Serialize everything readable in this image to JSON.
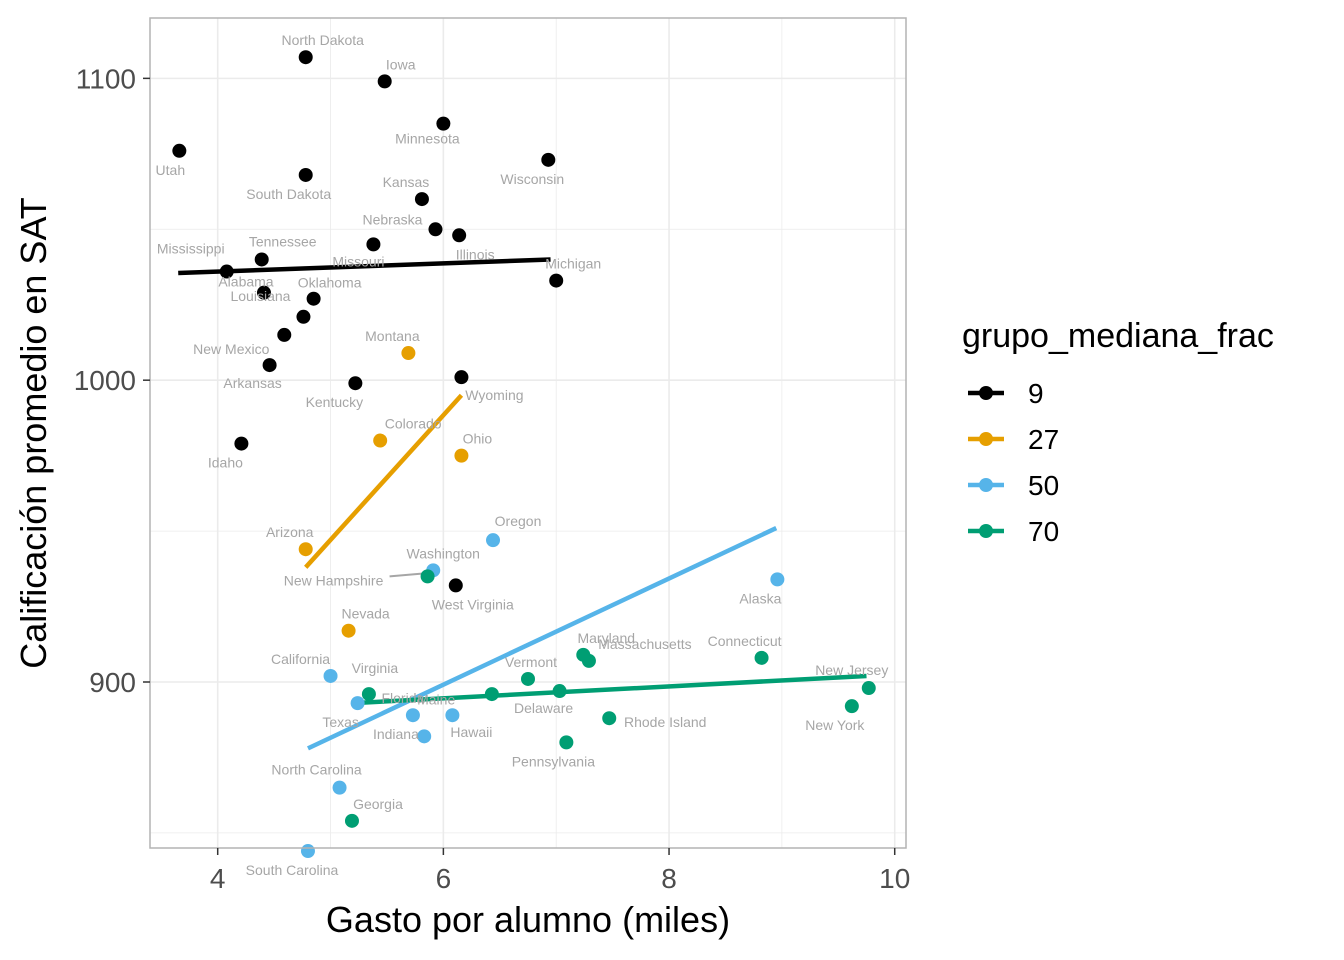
{
  "chart_data": {
    "type": "scatter",
    "xlabel": "Gasto por alumno (miles)",
    "ylabel": "Calificación promedio en SAT",
    "xlim": [
      3.4,
      10.1
    ],
    "ylim": [
      845,
      1120
    ],
    "x_ticks": [
      4,
      6,
      8,
      10
    ],
    "y_ticks": [
      900,
      1000,
      1100
    ],
    "grid": true,
    "legend": {
      "title": "grupo_mediana_frac",
      "placement": "right"
    },
    "series": [
      {
        "name": "9",
        "color": "#000000",
        "trend": [
          [
            3.65,
            1035.5
          ],
          [
            6.95,
            1040
          ]
        ],
        "points": [
          {
            "label": "North Dakota",
            "x": 4.78,
            "y": 1107
          },
          {
            "label": "Iowa",
            "x": 5.48,
            "y": 1099
          },
          {
            "label": "Minnesota",
            "x": 6.0,
            "y": 1085
          },
          {
            "label": "Utah",
            "x": 3.66,
            "y": 1076
          },
          {
            "label": "Wisconsin",
            "x": 6.93,
            "y": 1073
          },
          {
            "label": "South Dakota",
            "x": 4.78,
            "y": 1068
          },
          {
            "label": "Kansas",
            "x": 5.81,
            "y": 1060
          },
          {
            "label": "Nebraska",
            "x": 5.93,
            "y": 1050
          },
          {
            "label": "Illinois",
            "x": 6.14,
            "y": 1048
          },
          {
            "label": "Missouri",
            "x": 5.38,
            "y": 1045
          },
          {
            "label": "Tennessee",
            "x": 4.39,
            "y": 1040
          },
          {
            "label": "Mississippi",
            "x": 4.08,
            "y": 1036
          },
          {
            "label": "Michigan",
            "x": 7.0,
            "y": 1033
          },
          {
            "label": "Alabama",
            "x": 4.41,
            "y": 1029
          },
          {
            "label": "Oklahoma",
            "x": 4.85,
            "y": 1027
          },
          {
            "label": "Louisiana",
            "x": 4.76,
            "y": 1021
          },
          {
            "label": "New Mexico",
            "x": 4.59,
            "y": 1015
          },
          {
            "label": "Arkansas",
            "x": 4.46,
            "y": 1005
          },
          {
            "label": "Wyoming",
            "x": 6.16,
            "y": 1001
          },
          {
            "label": "Kentucky",
            "x": 5.22,
            "y": 999
          },
          {
            "label": "Idaho",
            "x": 4.21,
            "y": 979
          },
          {
            "label": "West Virginia",
            "x": 6.11,
            "y": 932
          }
        ]
      },
      {
        "name": "27",
        "color": "#E69F00",
        "trend": [
          [
            4.78,
            938
          ],
          [
            6.16,
            995
          ]
        ],
        "points": [
          {
            "label": "Montana",
            "x": 5.69,
            "y": 1009
          },
          {
            "label": "Colorado",
            "x": 5.44,
            "y": 980
          },
          {
            "label": "Ohio",
            "x": 6.16,
            "y": 975
          },
          {
            "label": "Arizona",
            "x": 4.78,
            "y": 944
          },
          {
            "label": "Nevada",
            "x": 5.16,
            "y": 917
          }
        ]
      },
      {
        "name": "50",
        "color": "#56B4E9",
        "trend": [
          [
            4.8,
            878
          ],
          [
            8.95,
            951
          ]
        ],
        "points": [
          {
            "label": "Oregon",
            "x": 6.44,
            "y": 947
          },
          {
            "label": "Washington",
            "x": 5.91,
            "y": 937
          },
          {
            "label": "Alaska",
            "x": 8.96,
            "y": 934
          },
          {
            "label": "California",
            "x": 5.0,
            "y": 902
          },
          {
            "label": "Texas",
            "x": 5.24,
            "y": 893
          },
          {
            "label": "Indiana",
            "x": 5.73,
            "y": 889
          },
          {
            "label": "Hawaii",
            "x": 6.08,
            "y": 889
          },
          {
            "label": "Maine",
            "x": 5.83,
            "y": 882
          },
          {
            "label": "North Carolina",
            "x": 5.08,
            "y": 865
          },
          {
            "label": "South Carolina",
            "x": 4.8,
            "y": 844
          }
        ]
      },
      {
        "name": "70",
        "color": "#009E73",
        "trend": [
          [
            5.2,
            893
          ],
          [
            9.75,
            902
          ]
        ],
        "points": [
          {
            "label": "New Hampshire",
            "x": 5.86,
            "y": 935
          },
          {
            "label": "Maryland",
            "x": 7.24,
            "y": 909
          },
          {
            "label": "Connecticut",
            "x": 8.82,
            "y": 908
          },
          {
            "label": "Massachusetts",
            "x": 7.29,
            "y": 907
          },
          {
            "label": "Vermont",
            "x": 6.75,
            "y": 901
          },
          {
            "label": "New Jersey",
            "x": 9.77,
            "y": 898
          },
          {
            "label": "Delaware",
            "x": 7.03,
            "y": 897
          },
          {
            "label": "Virginia",
            "x": 5.34,
            "y": 896
          },
          {
            "label": "Florida",
            "x": 6.43,
            "y": 896
          },
          {
            "label": "New York",
            "x": 9.62,
            "y": 892
          },
          {
            "label": "Rhode Island",
            "x": 7.47,
            "y": 888
          },
          {
            "label": "Pennsylvania",
            "x": 7.09,
            "y": 880
          },
          {
            "label": "Georgia",
            "x": 5.19,
            "y": 854
          }
        ]
      }
    ]
  }
}
